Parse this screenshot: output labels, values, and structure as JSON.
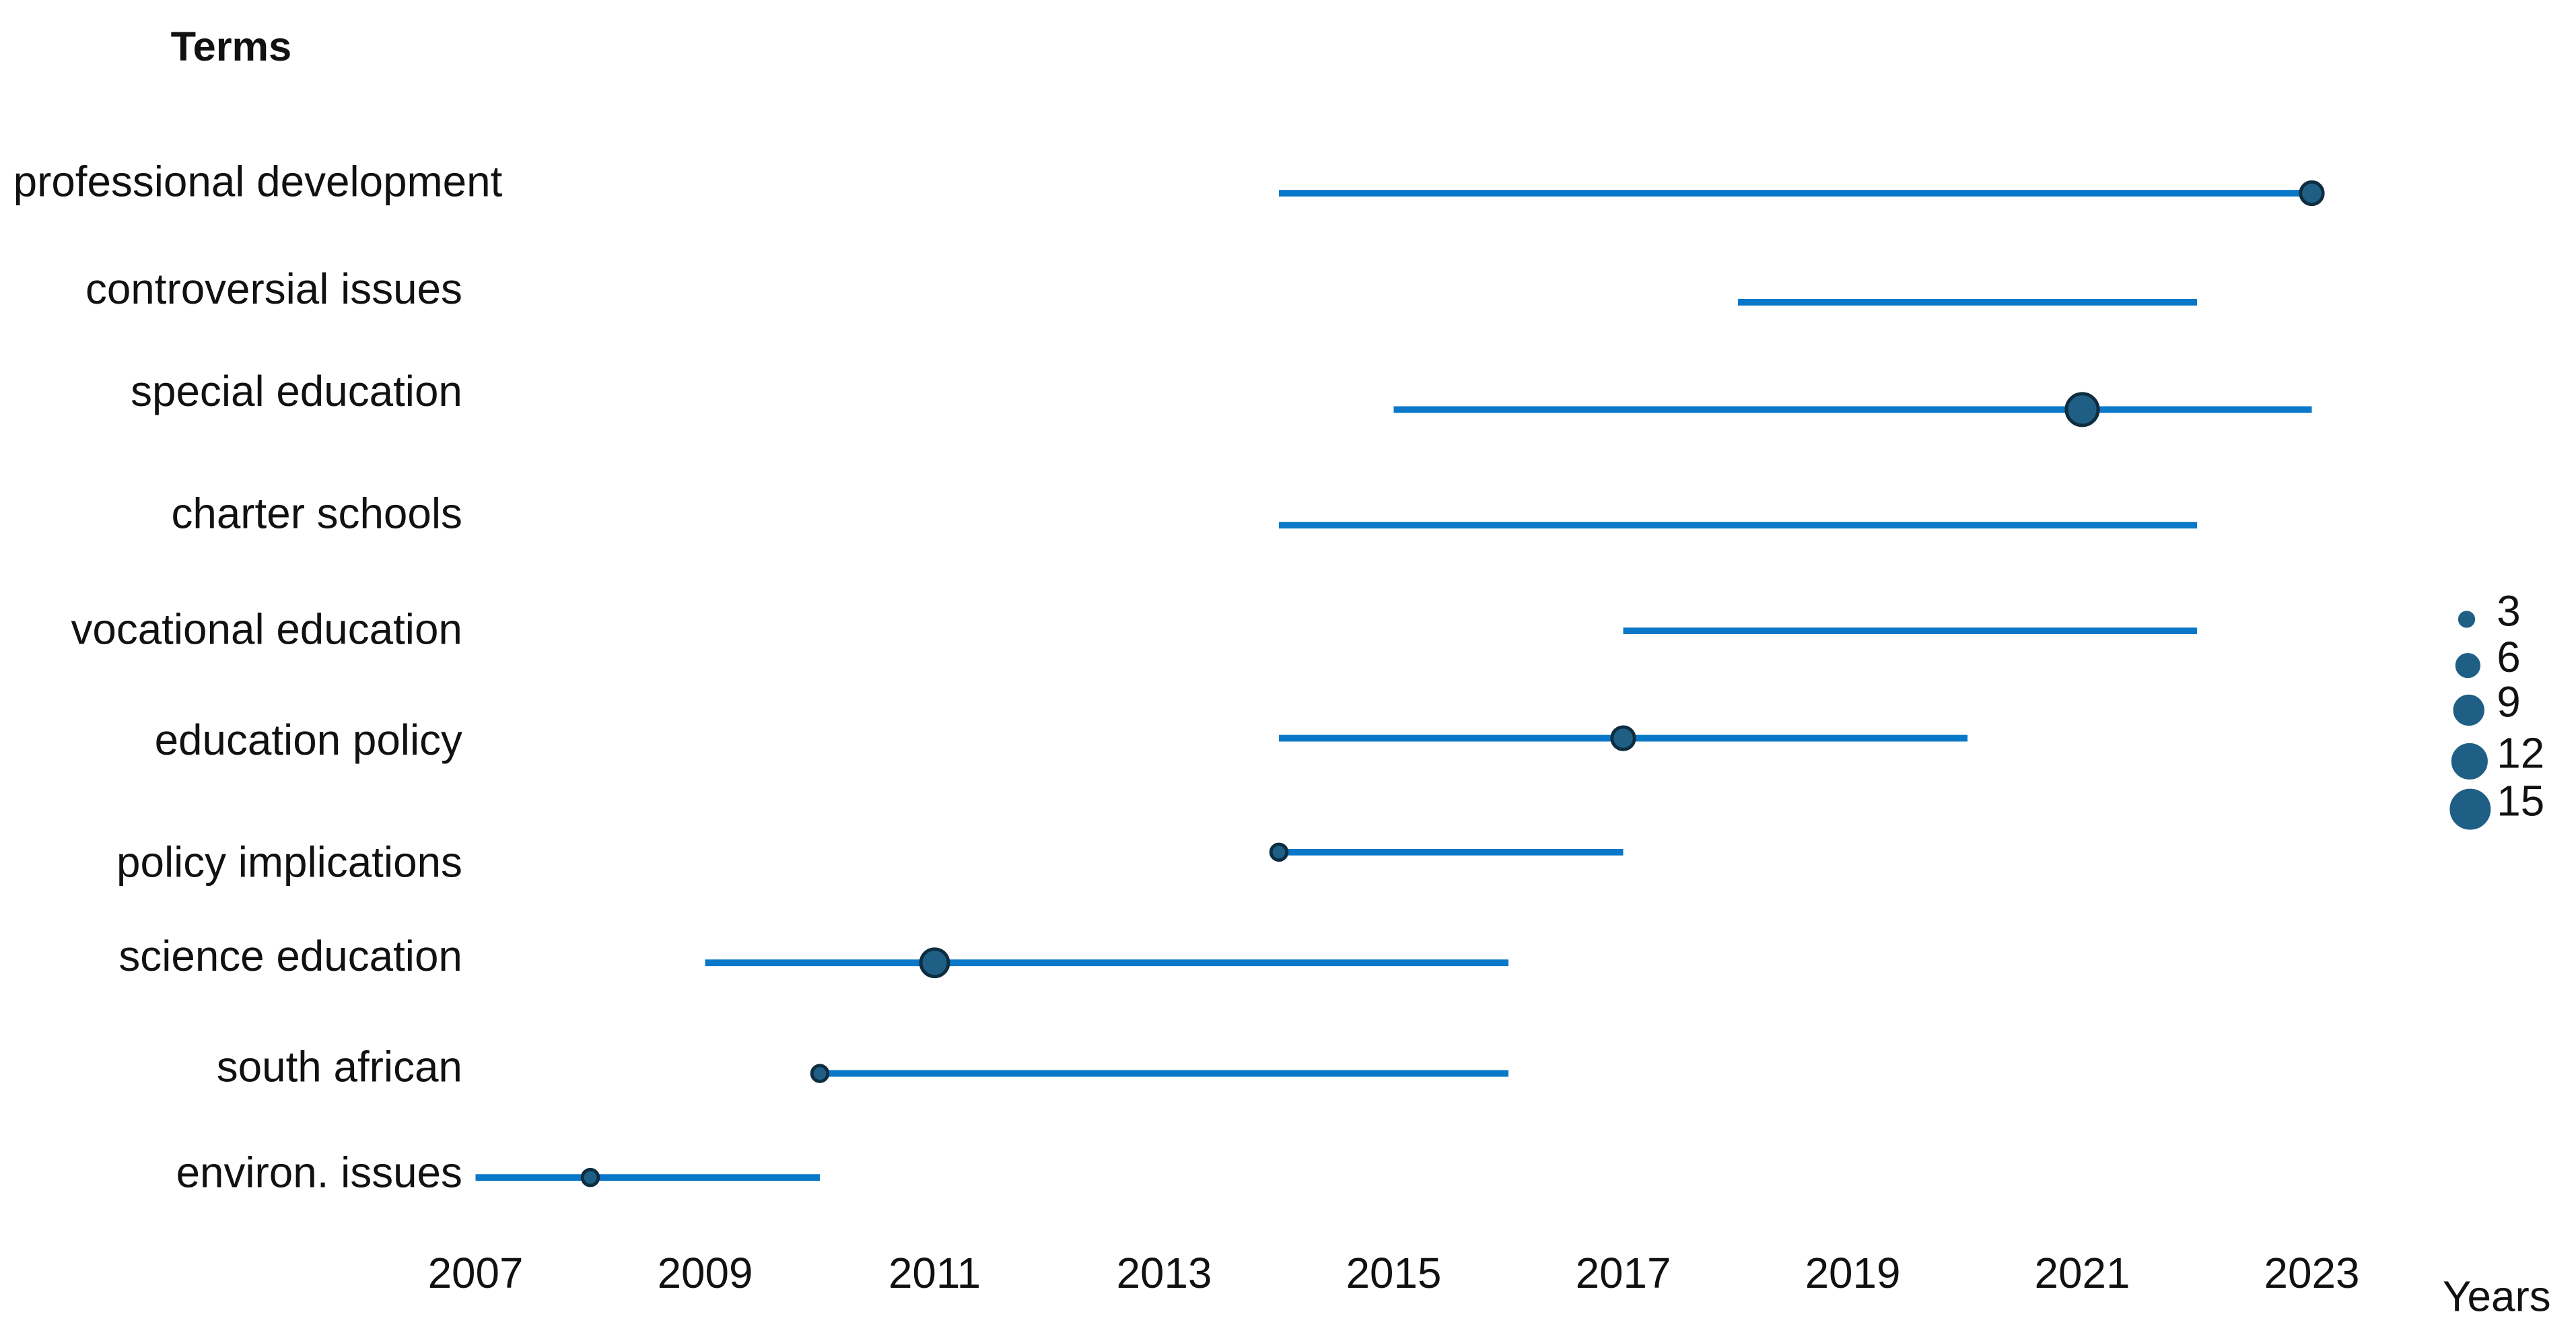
{
  "chart_data": {
    "type": "timeline",
    "title": "Terms",
    "x_label": "Years",
    "categories": [
      "professional development",
      "controversial issues",
      "special education",
      "charter schools",
      "vocational education",
      "education policy",
      "policy implications",
      "science education",
      "south african",
      "environ. issues"
    ],
    "start": [
      2014,
      2018,
      2015,
      2014,
      2017,
      2014,
      2014,
      2009,
      2010,
      2007
    ],
    "end": [
      2023,
      2022,
      2023,
      2022,
      2022,
      2020,
      2017,
      2016,
      2016,
      2010
    ],
    "peak": [
      2023,
      null,
      2021,
      null,
      null,
      2017,
      2014,
      2011,
      2010,
      2008
    ],
    "frequency": [
      4,
      null,
      8,
      null,
      null,
      4,
      2,
      6,
      2,
      2
    ],
    "xlim": [
      2007,
      2023
    ],
    "xticks": [
      2007,
      2009,
      2011,
      2013,
      2015,
      2017,
      2019,
      2021,
      2023
    ],
    "line_color": "#0a78c8",
    "dot_color": "#1f5f85",
    "size_legend": [
      3,
      6,
      9,
      12,
      15
    ]
  }
}
